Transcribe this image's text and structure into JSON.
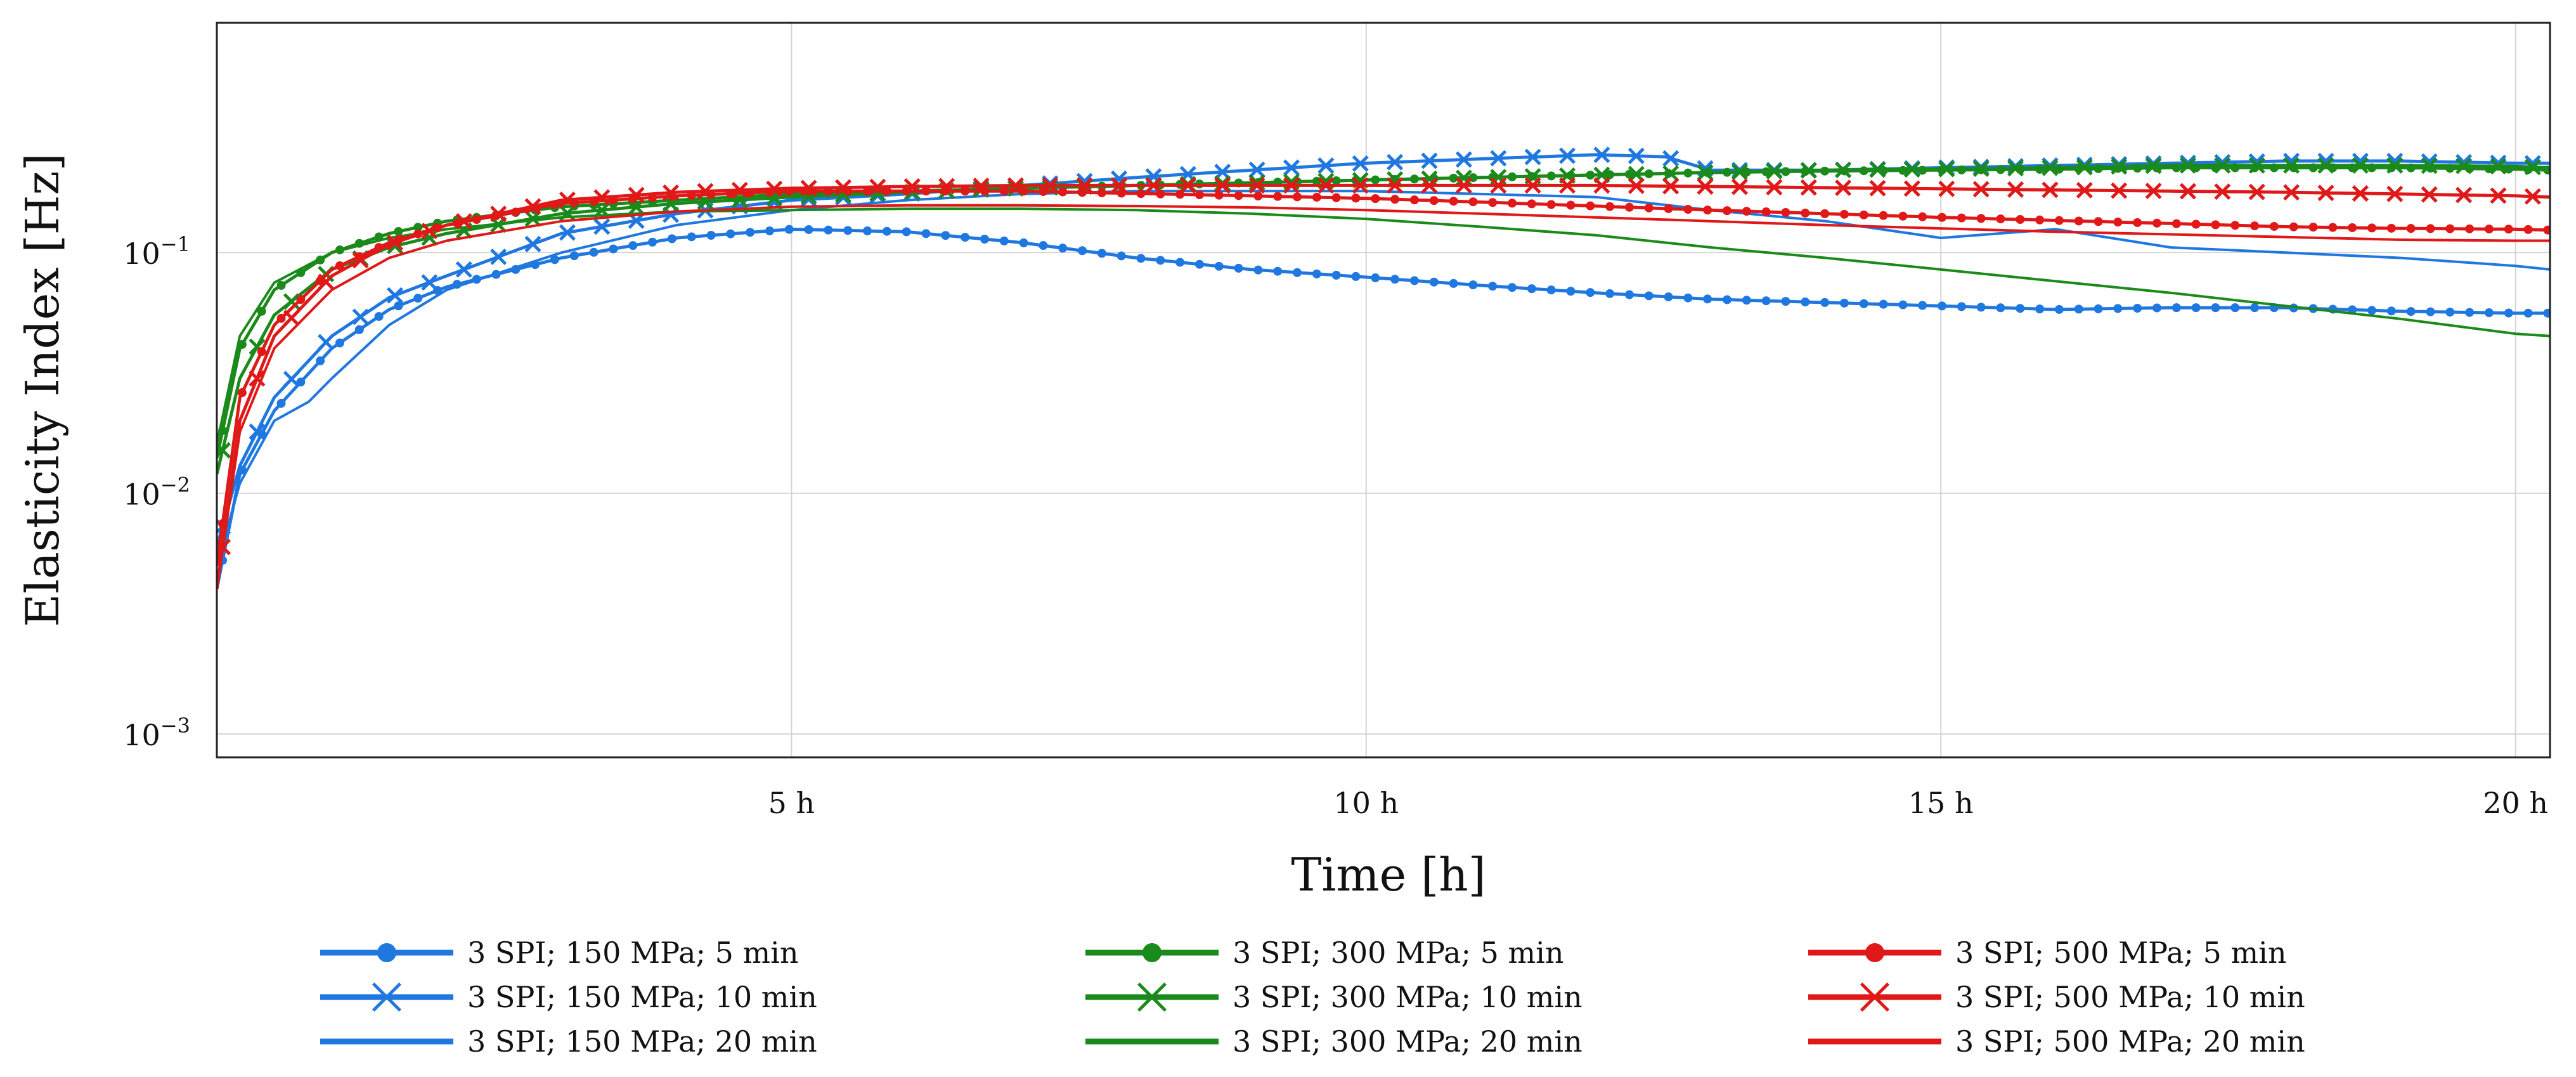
{
  "chart_data": {
    "type": "line",
    "title": "",
    "xlabel": "Time [h]",
    "ylabel": "Elasticity Index [Hz]",
    "xlim": [
      0,
      20.3
    ],
    "ylim": [
      0.0008,
      0.9
    ],
    "yscale": "log",
    "grid": true,
    "x_ticks": [
      {
        "value": 5,
        "label": "5 h"
      },
      {
        "value": 10,
        "label": "10 h"
      },
      {
        "value": 15,
        "label": "15 h"
      },
      {
        "value": 20,
        "label": "20 h"
      }
    ],
    "y_ticks": [
      {
        "value": 0.1,
        "base": "10",
        "exp": "−1"
      },
      {
        "value": 0.01,
        "base": "10",
        "exp": "−2"
      },
      {
        "value": 0.001,
        "base": "10",
        "exp": "−3"
      }
    ],
    "legend_position": "bottom",
    "series": [
      {
        "name": "3 SPI; 150 MPa; 5 min",
        "color": "#1f77e0",
        "marker": "dot",
        "x": [
          0,
          0.2,
          0.5,
          1,
          1.5,
          2,
          3,
          4,
          5,
          6,
          7,
          8,
          9,
          10,
          11,
          12,
          13,
          14,
          15,
          16,
          17,
          18,
          19,
          20,
          20.3
        ],
        "y": [
          0.004,
          0.012,
          0.022,
          0.04,
          0.058,
          0.072,
          0.095,
          0.115,
          0.125,
          0.122,
          0.11,
          0.095,
          0.085,
          0.079,
          0.073,
          0.068,
          0.064,
          0.062,
          0.06,
          0.058,
          0.059,
          0.059,
          0.057,
          0.056,
          0.056
        ]
      },
      {
        "name": "3 SPI; 150 MPa; 10 min",
        "color": "#1f77e0",
        "marker": "x",
        "x": [
          0,
          0.2,
          0.5,
          1,
          1.5,
          2,
          3,
          4,
          5,
          6,
          7,
          8,
          9,
          10,
          11,
          12,
          12.6,
          13,
          14,
          15,
          16,
          17,
          18,
          19,
          20,
          20.3
        ],
        "y": [
          0.006,
          0.013,
          0.025,
          0.045,
          0.065,
          0.08,
          0.12,
          0.145,
          0.165,
          0.175,
          0.19,
          0.205,
          0.22,
          0.235,
          0.245,
          0.255,
          0.25,
          0.22,
          0.22,
          0.225,
          0.23,
          0.235,
          0.24,
          0.24,
          0.235,
          0.235
        ]
      },
      {
        "name": "3 SPI; 150 MPa; 20 min",
        "color": "#1f77e0",
        "marker": "none",
        "x": [
          0,
          0.2,
          0.5,
          0.8,
          1,
          1.5,
          2,
          3,
          4,
          5,
          6,
          7,
          8,
          9,
          10,
          11,
          12,
          13,
          14,
          15,
          16,
          17,
          18,
          19,
          20,
          20.3
        ],
        "y": [
          0.005,
          0.011,
          0.02,
          0.024,
          0.03,
          0.05,
          0.07,
          0.1,
          0.13,
          0.15,
          0.165,
          0.175,
          0.18,
          0.18,
          0.18,
          0.175,
          0.17,
          0.15,
          0.135,
          0.115,
          0.125,
          0.105,
          0.1,
          0.095,
          0.088,
          0.085
        ]
      },
      {
        "name": "3 SPI; 300 MPa; 5 min",
        "color": "#1a8a1a",
        "marker": "dot",
        "x": [
          0,
          0.2,
          0.5,
          1,
          1.5,
          2,
          3,
          4,
          5,
          6,
          7,
          8,
          9,
          10,
          11,
          12,
          13,
          14,
          15,
          16,
          17,
          18,
          19,
          20,
          20.3
        ],
        "y": [
          0.014,
          0.04,
          0.07,
          0.1,
          0.12,
          0.135,
          0.155,
          0.165,
          0.175,
          0.18,
          0.185,
          0.19,
          0.195,
          0.2,
          0.205,
          0.21,
          0.215,
          0.218,
          0.22,
          0.222,
          0.225,
          0.225,
          0.225,
          0.222,
          0.22
        ]
      },
      {
        "name": "3 SPI; 300 MPa; 10 min",
        "color": "#1a8a1a",
        "marker": "x",
        "x": [
          0,
          0.2,
          0.5,
          1,
          1.5,
          2,
          3,
          4,
          5,
          6,
          7,
          8,
          9,
          10,
          11,
          12,
          13,
          14,
          15,
          16,
          17,
          18,
          19,
          20,
          20.3
        ],
        "y": [
          0.012,
          0.03,
          0.055,
          0.085,
          0.105,
          0.12,
          0.145,
          0.16,
          0.17,
          0.178,
          0.185,
          0.19,
          0.195,
          0.2,
          0.205,
          0.21,
          0.215,
          0.22,
          0.222,
          0.225,
          0.23,
          0.23,
          0.23,
          0.228,
          0.225
        ]
      },
      {
        "name": "3 SPI; 300 MPa; 20 min",
        "color": "#1a8a1a",
        "marker": "none",
        "x": [
          0,
          0.2,
          0.5,
          1,
          1.5,
          2,
          3,
          4,
          5,
          6,
          7,
          8,
          9,
          10,
          11,
          12,
          13,
          14,
          15,
          16,
          17,
          18,
          19,
          20,
          20.3
        ],
        "y": [
          0.016,
          0.045,
          0.075,
          0.1,
          0.115,
          0.125,
          0.14,
          0.148,
          0.15,
          0.152,
          0.152,
          0.15,
          0.145,
          0.138,
          0.128,
          0.118,
          0.105,
          0.095,
          0.085,
          0.076,
          0.068,
          0.06,
          0.053,
          0.046,
          0.045
        ]
      },
      {
        "name": "3 SPI; 500 MPa; 5 min",
        "color": "#e01818",
        "marker": "dot",
        "x": [
          0,
          0.2,
          0.5,
          1,
          1.5,
          2,
          3,
          4,
          5,
          6,
          7,
          8,
          9,
          10,
          11,
          12,
          13,
          14,
          15,
          16,
          17,
          18,
          19,
          20,
          20.3
        ],
        "y": [
          0.005,
          0.025,
          0.05,
          0.085,
          0.11,
          0.13,
          0.16,
          0.172,
          0.18,
          0.18,
          0.18,
          0.176,
          0.172,
          0.168,
          0.162,
          0.156,
          0.15,
          0.145,
          0.14,
          0.136,
          0.132,
          0.128,
          0.126,
          0.125,
          0.124
        ]
      },
      {
        "name": "3 SPI; 500 MPa; 10 min",
        "color": "#e01818",
        "marker": "x",
        "x": [
          0,
          0.2,
          0.5,
          1,
          1.5,
          2,
          3,
          4,
          5,
          6,
          7,
          8,
          9,
          10,
          11,
          12,
          13,
          14,
          15,
          16,
          17,
          18,
          19,
          20,
          20.3
        ],
        "y": [
          0.004,
          0.02,
          0.045,
          0.08,
          0.108,
          0.13,
          0.165,
          0.178,
          0.185,
          0.188,
          0.19,
          0.19,
          0.19,
          0.19,
          0.19,
          0.19,
          0.188,
          0.186,
          0.184,
          0.182,
          0.18,
          0.178,
          0.175,
          0.172,
          0.17
        ]
      },
      {
        "name": "3 SPI; 500 MPa; 20 min",
        "color": "#e01818",
        "marker": "none",
        "x": [
          0,
          0.2,
          0.5,
          1,
          1.5,
          2,
          3,
          4,
          5,
          6,
          7,
          8,
          9,
          10,
          11,
          12,
          13,
          14,
          15,
          16,
          17,
          18,
          19,
          20,
          20.3
        ],
        "y": [
          0.004,
          0.018,
          0.04,
          0.07,
          0.095,
          0.112,
          0.135,
          0.148,
          0.155,
          0.157,
          0.157,
          0.156,
          0.154,
          0.15,
          0.145,
          0.14,
          0.135,
          0.13,
          0.126,
          0.122,
          0.119,
          0.116,
          0.113,
          0.112,
          0.112
        ]
      }
    ]
  }
}
